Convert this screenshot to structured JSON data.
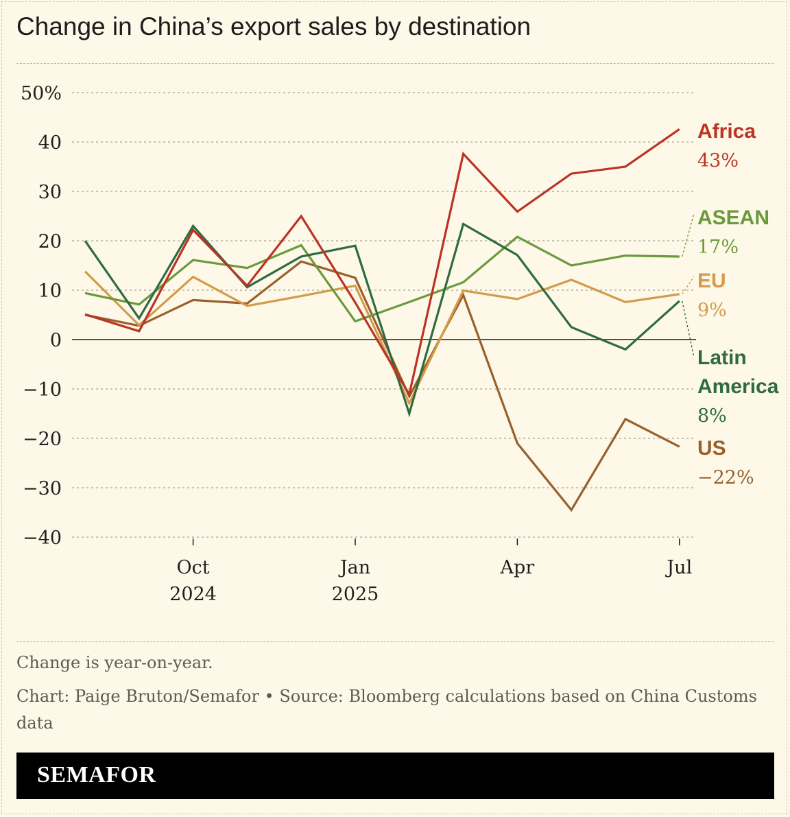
{
  "title": "Change in China’s export sales by destination",
  "notes": {
    "line1": "Change is year-on-year.",
    "line2": "Chart: Paige Bruton/Semafor  • Source: Bloomberg calculations based on China Customs",
    "line3": "data"
  },
  "logo": "SEMAFOR",
  "chart_data": {
    "type": "line",
    "title": "Change in China’s export sales by destination",
    "xlabel": "",
    "ylabel": "",
    "ylim": [
      -40,
      50
    ],
    "y_ticks": [
      50,
      40,
      30,
      20,
      10,
      0,
      -10,
      -20,
      -30,
      -40
    ],
    "y_tick_labels": [
      "50%",
      "40",
      "30",
      "20",
      "10",
      "0",
      "−10",
      "−20",
      "−30",
      "−40"
    ],
    "x": [
      "2024-08",
      "2024-09",
      "2024-10",
      "2024-11",
      "2024-12",
      "2025-01",
      "2025-02",
      "2025-03",
      "2025-04",
      "2025-05",
      "2025-06",
      "2025-07"
    ],
    "x_ticks": [
      {
        "month": "2024-10",
        "line1": "Oct",
        "line2": "2024"
      },
      {
        "month": "2025-01",
        "line1": "Jan",
        "line2": "2025"
      },
      {
        "month": "2025-04",
        "line1": "Apr",
        "line2": ""
      },
      {
        "month": "2025-07",
        "line1": "Jul",
        "line2": ""
      }
    ],
    "grid": true,
    "series": [
      {
        "name": "US",
        "color": "#98602c",
        "end_label": "−22%",
        "values": [
          5,
          2.8,
          8,
          7.3,
          15.8,
          12.5,
          -11.5,
          9,
          -21,
          -34.5,
          -16.1,
          -21.7
        ]
      },
      {
        "name": "EU",
        "color": "#d39b4a",
        "end_label": "9%",
        "values": [
          13.8,
          2.9,
          12.7,
          6.8,
          8.8,
          10.9,
          -12.9,
          9.9,
          8.2,
          12.1,
          7.6,
          9.2
        ]
      },
      {
        "name": "ASEAN",
        "color": "#6a9a3c",
        "end_label": "17%",
        "values": [
          9.4,
          7.1,
          16.1,
          14.5,
          19.1,
          3.7,
          7.6,
          11.6,
          20.8,
          15,
          17,
          16.8
        ]
      },
      {
        "name": "Latin America",
        "color": "#2f6b40",
        "end_label": "8%",
        "values": [
          20,
          4.3,
          23,
          10.6,
          16.8,
          19,
          -15,
          23.4,
          17.1,
          2.5,
          -2,
          7.8
        ]
      },
      {
        "name": "Africa",
        "color": "#bb3324",
        "end_label": "43%",
        "values": [
          5.1,
          1.7,
          22.2,
          10.9,
          25,
          7.5,
          -11.1,
          37.6,
          25.9,
          33.6,
          35,
          42.6
        ]
      }
    ],
    "labels": [
      {
        "series": "Africa",
        "lines": [
          "Africa"
        ],
        "value": "43%"
      },
      {
        "series": "ASEAN",
        "lines": [
          "ASEAN"
        ],
        "value": "17%"
      },
      {
        "series": "EU",
        "lines": [
          "EU"
        ],
        "value": "9%"
      },
      {
        "series": "Latin America",
        "lines": [
          "Latin",
          "America"
        ],
        "value": "8%"
      },
      {
        "series": "US",
        "lines": [
          "US"
        ],
        "value": "−22%"
      }
    ]
  }
}
